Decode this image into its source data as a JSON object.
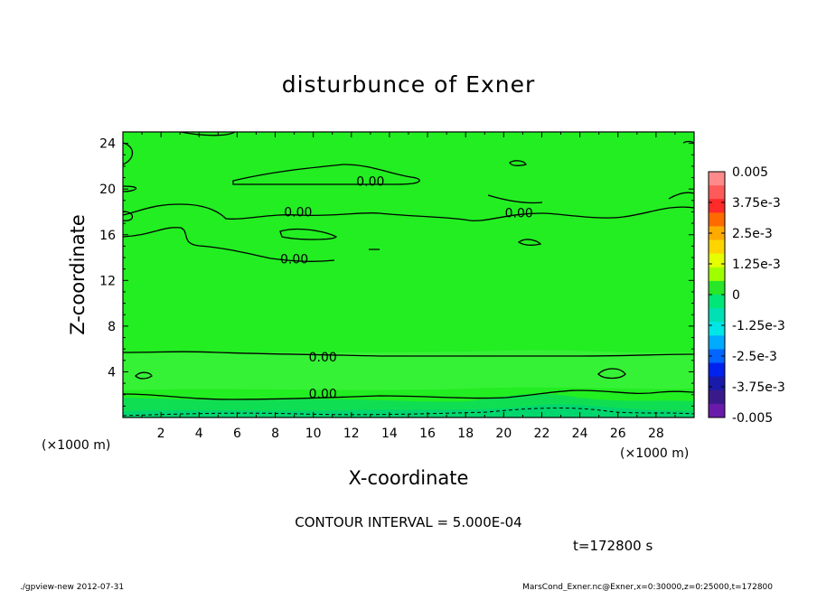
{
  "chart_data": {
    "type": "heatmap",
    "title": "disturbunce of Exner",
    "xlabel": "X-coordinate",
    "ylabel": "Z-coordinate",
    "x_unit_left": "(×1000 m)",
    "x_unit_right": "(×1000 m)",
    "xlim": [
      0,
      30
    ],
    "ylim": [
      0,
      25
    ],
    "x_ticks": [
      "2",
      "4",
      "6",
      "8",
      "10",
      "12",
      "14",
      "16",
      "18",
      "20",
      "22",
      "24",
      "26",
      "28"
    ],
    "y_ticks": [
      "4",
      "8",
      "12",
      "16",
      "20",
      "24"
    ],
    "contour_interval": "CONTOUR INTERVAL = 5.000E-04",
    "time_label": "t=172800 s",
    "contour_labels": [
      {
        "text": "0.00",
        "x": 13.0,
        "z": 20.7
      },
      {
        "text": "0.00",
        "x": 9.2,
        "z": 18.0
      },
      {
        "text": "0.00",
        "x": 20.8,
        "z": 17.9
      },
      {
        "text": "0.00",
        "x": 9.0,
        "z": 13.9
      },
      {
        "text": "0.00",
        "x": 10.5,
        "z": 5.3
      },
      {
        "text": "0.00",
        "x": 10.5,
        "z": 2.1
      }
    ],
    "colorbar": {
      "labels": [
        "0.005",
        "3.75e-3",
        "2.5e-3",
        "1.25e-3",
        "0",
        "-1.25e-3",
        "-2.5e-3",
        "-3.75e-3",
        "-0.005"
      ],
      "colors": [
        "#ff8a8a",
        "#ff5a5a",
        "#ff2a2a",
        "#ff6a00",
        "#ffaa00",
        "#ffd400",
        "#e6ff00",
        "#9fff00",
        "#28e628",
        "#00e678",
        "#00e0b4",
        "#00e6e6",
        "#00aaff",
        "#0066ff",
        "#0022ee",
        "#1a1aaa",
        "#3a1a8a",
        "#6a1aaa"
      ]
    }
  },
  "footer": {
    "left": "./gpview-new   2012-07-31",
    "right": "MarsCond_Exner.nc@Exner,x=0:30000,z=0:25000,t=172800"
  }
}
